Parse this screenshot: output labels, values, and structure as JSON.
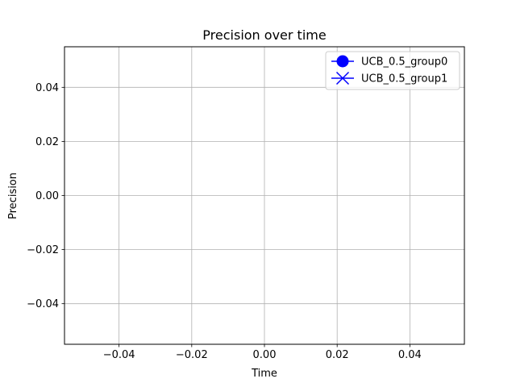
{
  "chart_data": {
    "type": "line",
    "title": "Precision over time",
    "xlabel": "Time",
    "ylabel": "Precision",
    "xlim": [
      -0.055,
      0.055
    ],
    "ylim": [
      -0.055,
      0.055
    ],
    "xticks": [
      -0.04,
      -0.02,
      0.0,
      0.02,
      0.04
    ],
    "xtick_labels": [
      "−0.04",
      "−0.02",
      "0.00",
      "0.02",
      "0.04"
    ],
    "yticks": [
      -0.04,
      -0.02,
      0.0,
      0.02,
      0.04
    ],
    "ytick_labels": [
      "−0.04",
      "−0.02",
      "0.00",
      "0.02",
      "0.04"
    ],
    "grid": true,
    "legend_position": "top-right",
    "series": [
      {
        "name": "UCB_0.5_group0",
        "marker": "circle",
        "color": "#0000ff",
        "x": [],
        "y": []
      },
      {
        "name": "UCB_0.5_group1",
        "marker": "x",
        "color": "#0000ff",
        "x": [],
        "y": []
      }
    ]
  }
}
